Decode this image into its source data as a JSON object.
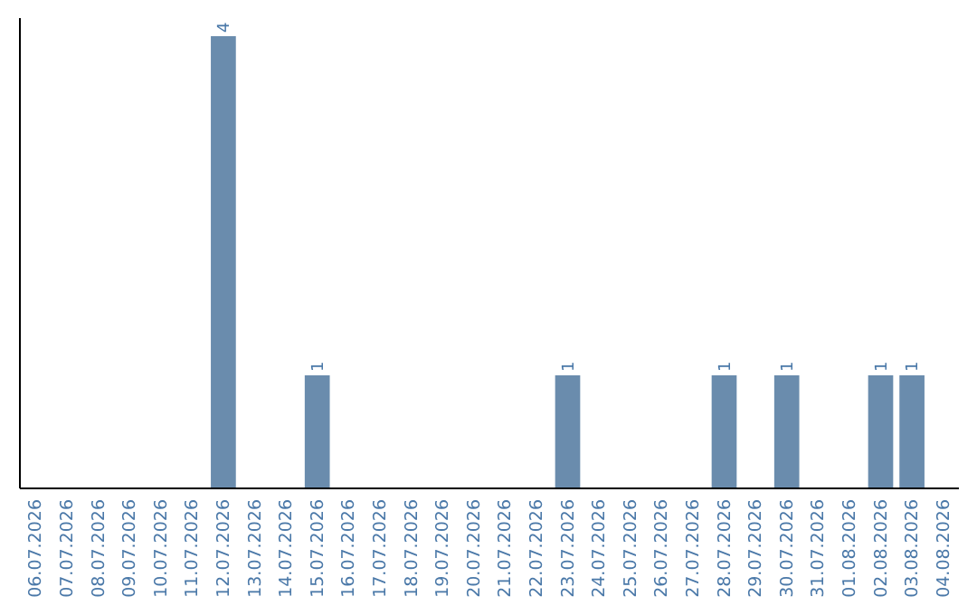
{
  "chart_data": {
    "type": "bar",
    "categories": [
      "06.07.2026",
      "07.07.2026",
      "08.07.2026",
      "09.07.2026",
      "10.07.2026",
      "11.07.2026",
      "12.07.2026",
      "13.07.2026",
      "14.07.2026",
      "15.07.2026",
      "16.07.2026",
      "17.07.2026",
      "18.07.2026",
      "19.07.2026",
      "20.07.2026",
      "21.07.2026",
      "22.07.2026",
      "23.07.2026",
      "24.07.2026",
      "25.07.2026",
      "26.07.2026",
      "27.07.2026",
      "28.07.2026",
      "29.07.2026",
      "30.07.2026",
      "31.07.2026",
      "01.08.2026",
      "02.08.2026",
      "03.08.2026",
      "04.08.2026"
    ],
    "values": [
      0,
      0,
      0,
      0,
      0,
      0,
      4,
      0,
      0,
      1,
      0,
      0,
      0,
      0,
      0,
      0,
      0,
      1,
      0,
      0,
      0,
      0,
      1,
      0,
      1,
      0,
      0,
      1,
      1,
      0
    ],
    "value_labels": [
      null,
      null,
      null,
      null,
      null,
      null,
      "4",
      null,
      null,
      "1",
      null,
      null,
      null,
      null,
      null,
      null,
      null,
      "1",
      null,
      null,
      null,
      null,
      "1",
      null,
      "1",
      null,
      null,
      "1",
      "1",
      null
    ],
    "color": "#6a8cad",
    "tick_labels": "x"
  }
}
